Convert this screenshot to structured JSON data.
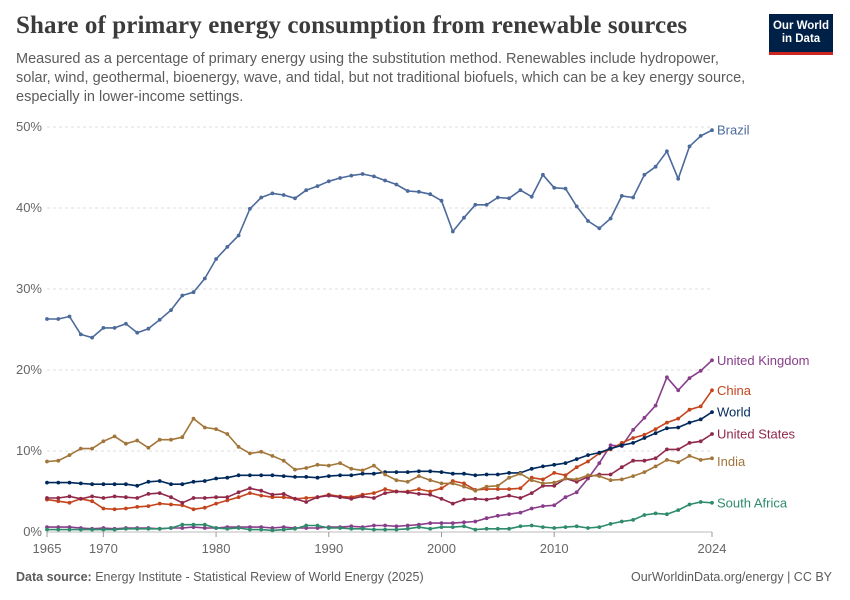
{
  "header": {
    "title": "Share of primary energy consumption from renewable sources",
    "subtitle": "Measured as a percentage of primary energy using the substitution method. Renewables include hydropower, solar, wind, geothermal, bioenergy, wave, and tidal, but not traditional biofuels, which can be a key energy source, especially in lower-income settings.",
    "logo_line1": "Our World",
    "logo_line2": "in Data"
  },
  "footer": {
    "source_label": "Data source:",
    "source_text": "Energy Institute - Statistical Review of World Energy (2025)",
    "right_text": "OurWorldinData.org/energy | CC BY"
  },
  "colors": {
    "brazil": "#4c6a9c",
    "united_kingdom": "#883d8a",
    "china": "#c4441d",
    "world": "#00295b",
    "united_states": "#8f2849",
    "india": "#a2763a",
    "south_africa": "#2e8b6b",
    "grid": "#dddddd",
    "axis_text": "#666666"
  },
  "chart_data": {
    "type": "line",
    "title": "Share of primary energy consumption from renewable sources",
    "xlabel": "",
    "ylabel": "",
    "xlim": [
      1965,
      2024
    ],
    "ylim": [
      0,
      50
    ],
    "y_ticks": [
      0,
      10,
      20,
      30,
      40,
      50
    ],
    "y_tick_labels": [
      "0%",
      "10%",
      "20%",
      "30%",
      "40%",
      "50%"
    ],
    "x_ticks": [
      1965,
      1970,
      1980,
      1990,
      2000,
      2010,
      2024
    ],
    "x_tick_labels": [
      "1965",
      "1970",
      "1980",
      "1990",
      "2000",
      "2010",
      "2024"
    ],
    "grid": "horizontal dashed",
    "legend": "labels at line ends (right)",
    "x": [
      1965,
      1966,
      1967,
      1968,
      1969,
      1970,
      1971,
      1972,
      1973,
      1974,
      1975,
      1976,
      1977,
      1978,
      1979,
      1980,
      1981,
      1982,
      1983,
      1984,
      1985,
      1986,
      1987,
      1988,
      1989,
      1990,
      1991,
      1992,
      1993,
      1994,
      1995,
      1996,
      1997,
      1998,
      1999,
      2000,
      2001,
      2002,
      2003,
      2004,
      2005,
      2006,
      2007,
      2008,
      2009,
      2010,
      2011,
      2012,
      2013,
      2014,
      2015,
      2016,
      2017,
      2018,
      2019,
      2020,
      2021,
      2022,
      2023,
      2024
    ],
    "series": [
      {
        "name": "Brazil",
        "key": "brazil",
        "values": [
          26.3,
          26.3,
          26.6,
          24.4,
          24.0,
          25.2,
          25.2,
          25.7,
          24.6,
          25.1,
          26.2,
          27.4,
          29.2,
          29.6,
          31.3,
          33.7,
          35.2,
          36.6,
          39.9,
          41.3,
          41.8,
          41.6,
          41.2,
          42.2,
          42.7,
          43.3,
          43.7,
          44.0,
          44.2,
          43.9,
          43.4,
          42.9,
          42.1,
          42.0,
          41.7,
          40.9,
          37.1,
          38.8,
          40.4,
          40.4,
          41.3,
          41.2,
          42.2,
          41.4,
          44.1,
          42.5,
          42.4,
          40.2,
          38.4,
          37.5,
          38.7,
          41.5,
          41.3,
          44.1,
          45.1,
          47.0,
          43.6,
          47.6,
          48.9,
          49.6
        ]
      },
      {
        "name": "United Kingdom",
        "key": "united_kingdom",
        "values": [
          0.6,
          0.6,
          0.6,
          0.5,
          0.4,
          0.5,
          0.4,
          0.5,
          0.5,
          0.5,
          0.4,
          0.5,
          0.5,
          0.6,
          0.5,
          0.5,
          0.6,
          0.6,
          0.6,
          0.6,
          0.5,
          0.6,
          0.5,
          0.5,
          0.5,
          0.6,
          0.6,
          0.7,
          0.6,
          0.8,
          0.8,
          0.7,
          0.8,
          0.9,
          1.1,
          1.1,
          1.1,
          1.2,
          1.3,
          1.7,
          2.0,
          2.2,
          2.4,
          2.9,
          3.2,
          3.3,
          4.3,
          4.9,
          6.6,
          8.5,
          10.7,
          10.6,
          12.6,
          14.1,
          15.6,
          19.1,
          17.5,
          19.0,
          19.9,
          21.2
        ]
      },
      {
        "name": "China",
        "key": "china",
        "values": [
          4.0,
          3.8,
          3.6,
          4.1,
          3.8,
          2.9,
          2.8,
          2.9,
          3.1,
          3.2,
          3.5,
          3.4,
          3.3,
          2.8,
          3.0,
          3.5,
          3.9,
          4.3,
          4.8,
          4.5,
          4.3,
          4.3,
          4.1,
          4.2,
          4.3,
          4.6,
          4.4,
          4.3,
          4.6,
          4.8,
          5.3,
          5.0,
          5.0,
          5.3,
          5.0,
          5.4,
          6.3,
          6.0,
          5.2,
          5.3,
          5.3,
          5.3,
          5.4,
          6.7,
          6.5,
          7.3,
          7.0,
          8.0,
          8.7,
          9.7,
          10.2,
          11.0,
          11.6,
          12.0,
          12.7,
          13.5,
          14.0,
          15.1,
          15.5,
          17.5
        ]
      },
      {
        "name": "World",
        "key": "world",
        "values": [
          6.1,
          6.1,
          6.1,
          6.0,
          5.9,
          5.9,
          5.9,
          5.9,
          5.7,
          6.2,
          6.3,
          5.9,
          5.9,
          6.2,
          6.3,
          6.6,
          6.7,
          7.0,
          7.0,
          7.0,
          7.0,
          6.9,
          6.8,
          6.8,
          6.7,
          6.9,
          7.0,
          7.0,
          7.2,
          7.2,
          7.4,
          7.4,
          7.4,
          7.5,
          7.5,
          7.4,
          7.2,
          7.2,
          7.0,
          7.1,
          7.1,
          7.3,
          7.3,
          7.8,
          8.1,
          8.3,
          8.5,
          9.0,
          9.5,
          9.8,
          10.3,
          10.7,
          11.0,
          11.6,
          12.2,
          12.8,
          12.9,
          13.5,
          13.9,
          14.8
        ]
      },
      {
        "name": "United States",
        "key": "united_states",
        "values": [
          4.2,
          4.2,
          4.4,
          4.1,
          4.4,
          4.2,
          4.4,
          4.3,
          4.2,
          4.7,
          4.8,
          4.3,
          3.6,
          4.2,
          4.2,
          4.3,
          4.3,
          4.9,
          5.4,
          5.1,
          4.6,
          4.7,
          4.1,
          3.7,
          4.3,
          4.5,
          4.3,
          4.1,
          4.4,
          4.2,
          4.8,
          5.0,
          4.9,
          4.7,
          4.6,
          4.1,
          3.5,
          4.0,
          4.1,
          4.0,
          4.2,
          4.5,
          4.2,
          4.8,
          5.7,
          5.7,
          6.6,
          6.2,
          6.8,
          7.1,
          7.1,
          8.0,
          8.8,
          8.8,
          9.1,
          10.2,
          10.2,
          11.0,
          11.2,
          12.1
        ]
      },
      {
        "name": "India",
        "key": "india",
        "values": [
          8.7,
          8.8,
          9.5,
          10.3,
          10.3,
          11.2,
          11.8,
          10.9,
          11.3,
          10.4,
          11.4,
          11.4,
          11.7,
          14.0,
          12.9,
          12.7,
          12.1,
          10.5,
          9.7,
          9.9,
          9.4,
          8.8,
          7.7,
          7.9,
          8.3,
          8.2,
          8.5,
          7.8,
          7.6,
          8.2,
          7.1,
          6.4,
          6.2,
          6.9,
          6.4,
          6.0,
          6.0,
          5.6,
          5.1,
          5.6,
          5.7,
          6.7,
          7.2,
          6.4,
          6.0,
          6.1,
          6.6,
          6.5,
          7.0,
          6.9,
          6.4,
          6.5,
          6.9,
          7.4,
          8.1,
          8.9,
          8.6,
          9.4,
          8.9,
          9.1
        ]
      },
      {
        "name": "South Africa",
        "key": "south_africa",
        "values": [
          0.3,
          0.3,
          0.3,
          0.3,
          0.3,
          0.3,
          0.3,
          0.4,
          0.4,
          0.4,
          0.4,
          0.5,
          0.9,
          0.9,
          0.9,
          0.5,
          0.4,
          0.5,
          0.3,
          0.3,
          0.2,
          0.3,
          0.4,
          0.8,
          0.8,
          0.5,
          0.5,
          0.4,
          0.4,
          0.3,
          0.3,
          0.3,
          0.4,
          0.6,
          0.4,
          0.6,
          0.6,
          0.7,
          0.3,
          0.4,
          0.4,
          0.4,
          0.7,
          0.8,
          0.6,
          0.5,
          0.6,
          0.7,
          0.5,
          0.6,
          1.0,
          1.3,
          1.5,
          2.1,
          2.3,
          2.2,
          2.7,
          3.4,
          3.7,
          3.6
        ]
      }
    ]
  }
}
